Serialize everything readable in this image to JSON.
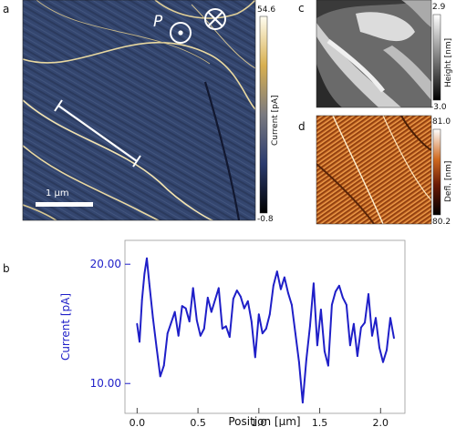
{
  "figure": {
    "panels": {
      "a": {
        "label": "a",
        "marker_p": "P",
        "scale_bar_text": "1 μm",
        "colorbar": {
          "max": "54.6",
          "min": "-0.8",
          "title": "Current [pA]"
        }
      },
      "b": {
        "label": "b"
      },
      "c": {
        "label": "c",
        "colorbar": {
          "max": "2.9",
          "min": "-3.0",
          "title": "Height [nm]"
        }
      },
      "d": {
        "label": "d",
        "colorbar": {
          "max": "81.0",
          "min": "80.2",
          "title": "Defl. [nm]"
        }
      }
    }
  },
  "chart_data": {
    "type": "line",
    "xlabel": "Position [μm]",
    "ylabel": "Current [pA]",
    "xlim": [
      -0.1,
      2.2
    ],
    "ylim": [
      7.5,
      22.0
    ],
    "x_ticks": [
      0.0,
      0.5,
      1.0,
      1.5,
      2.0
    ],
    "x_tick_labels": [
      "0.0",
      "0.5",
      "1.0",
      "1.5",
      "2.0"
    ],
    "y_ticks": [
      10.0,
      20.0
    ],
    "y_tick_labels": [
      "10.00",
      "20.00"
    ],
    "line_color": "#1f1fc8",
    "series": [
      {
        "x": [
          0.0,
          0.02,
          0.04,
          0.06,
          0.08,
          0.1,
          0.13,
          0.16,
          0.19,
          0.22,
          0.25,
          0.28,
          0.31,
          0.34,
          0.37,
          0.4,
          0.43,
          0.46,
          0.49,
          0.52,
          0.55,
          0.58,
          0.61,
          0.64,
          0.67,
          0.7,
          0.73,
          0.76,
          0.79,
          0.82,
          0.85,
          0.88,
          0.91,
          0.94,
          0.97,
          1.0,
          1.03,
          1.06,
          1.09,
          1.12,
          1.15,
          1.18,
          1.21,
          1.24,
          1.27,
          1.3,
          1.33,
          1.36,
          1.39,
          1.42,
          1.45,
          1.48,
          1.51,
          1.54,
          1.57,
          1.6,
          1.63,
          1.66,
          1.69,
          1.72,
          1.75,
          1.78,
          1.81,
          1.84,
          1.87,
          1.9,
          1.93,
          1.96,
          1.99,
          2.02,
          2.05,
          2.08,
          2.11
        ],
        "y": [
          15.0,
          13.5,
          17.0,
          19.2,
          20.5,
          18.4,
          15.5,
          13.0,
          10.6,
          11.5,
          14.2,
          15.1,
          16.0,
          14.0,
          16.5,
          16.3,
          15.2,
          18.0,
          15.3,
          14.0,
          14.6,
          17.2,
          16.0,
          17.0,
          18.0,
          14.6,
          14.8,
          13.9,
          17.1,
          17.8,
          17.3,
          16.3,
          16.9,
          15.2,
          12.2,
          15.8,
          14.2,
          14.6,
          15.8,
          18.2,
          19.4,
          17.9,
          18.9,
          17.6,
          16.6,
          14.2,
          11.8,
          8.4,
          12.0,
          14.8,
          18.4,
          13.2,
          16.2,
          12.7,
          11.5,
          16.6,
          17.7,
          18.2,
          17.2,
          16.6,
          13.2,
          15.0,
          12.3,
          14.7,
          15.1,
          17.5,
          14.0,
          15.5,
          13.0,
          11.8,
          12.8,
          15.5,
          13.8
        ]
      }
    ]
  }
}
